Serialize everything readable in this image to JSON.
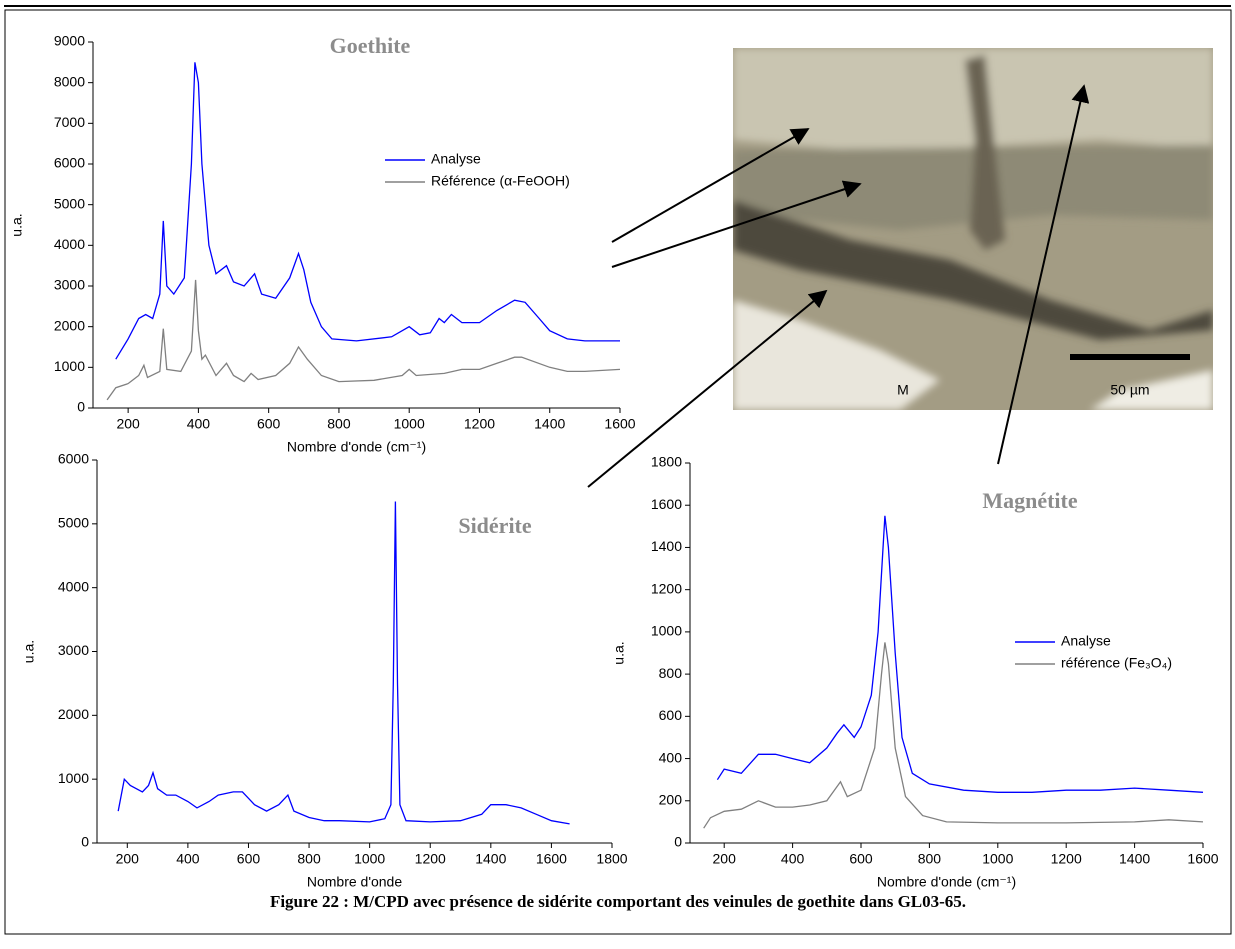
{
  "figure": {
    "caption": "Figure 22 : M/CPD avec présence de sidérite comportant des veinules de goethite dans GL03-65.",
    "micrograph": {
      "label": "M",
      "scale_bar": "50 µm"
    }
  },
  "chart_data": [
    {
      "type": "line",
      "title": "Goethite",
      "xlabel": "Nombre d'onde (cm⁻¹)",
      "ylabel": "u.a.",
      "xlim": [
        100,
        1600
      ],
      "xticks": [
        200,
        400,
        600,
        800,
        1000,
        1200,
        1400,
        1600
      ],
      "ylim": [
        0,
        9000
      ],
      "yticks": [
        0,
        1000,
        2000,
        3000,
        4000,
        5000,
        6000,
        7000,
        8000,
        9000
      ],
      "series": [
        {
          "name": "Analyse",
          "color": "#0000ff",
          "x": [
            165,
            200,
            230,
            250,
            270,
            290,
            300,
            310,
            330,
            360,
            380,
            390,
            400,
            410,
            430,
            450,
            480,
            500,
            530,
            560,
            580,
            620,
            660,
            685,
            700,
            720,
            750,
            780,
            850,
            950,
            1000,
            1030,
            1060,
            1085,
            1100,
            1120,
            1150,
            1200,
            1250,
            1300,
            1330,
            1370,
            1400,
            1450,
            1500,
            1600
          ],
          "values": [
            1200,
            1700,
            2200,
            2300,
            2200,
            2800,
            4600,
            3000,
            2800,
            3200,
            6000,
            8500,
            8000,
            6000,
            4000,
            3300,
            3500,
            3100,
            3000,
            3300,
            2800,
            2700,
            3200,
            3800,
            3400,
            2600,
            2000,
            1700,
            1650,
            1750,
            2000,
            1800,
            1850,
            2200,
            2100,
            2300,
            2100,
            2100,
            2400,
            2650,
            2600,
            2200,
            1900,
            1700,
            1650,
            1650
          ]
        },
        {
          "name": "Référence (α-FeOOH)",
          "color": "#808080",
          "x": [
            140,
            165,
            200,
            230,
            245,
            255,
            290,
            300,
            310,
            350,
            380,
            392,
            400,
            410,
            420,
            450,
            480,
            500,
            530,
            550,
            570,
            620,
            660,
            685,
            710,
            750,
            800,
            900,
            980,
            1000,
            1020,
            1100,
            1150,
            1200,
            1250,
            1300,
            1320,
            1400,
            1450,
            1500,
            1600
          ],
          "values": [
            200,
            500,
            600,
            800,
            1050,
            750,
            900,
            1950,
            950,
            900,
            1400,
            3150,
            1900,
            1200,
            1300,
            800,
            1100,
            800,
            650,
            850,
            700,
            800,
            1100,
            1500,
            1200,
            800,
            650,
            680,
            800,
            950,
            800,
            850,
            950,
            950,
            1100,
            1250,
            1250,
            1000,
            900,
            900,
            950
          ]
        }
      ]
    },
    {
      "type": "line",
      "title": "Sidérite",
      "xlabel": "Nombre d'onde",
      "ylabel": "u.a.",
      "xlim": [
        100,
        1800
      ],
      "xticks": [
        200,
        400,
        600,
        800,
        1000,
        1200,
        1400,
        1600,
        1800
      ],
      "ylim": [
        0,
        6000
      ],
      "yticks": [
        0,
        1000,
        2000,
        3000,
        4000,
        5000,
        6000
      ],
      "series": [
        {
          "color": "#0000ff",
          "x": [
            170,
            190,
            210,
            250,
            270,
            285,
            300,
            330,
            360,
            400,
            430,
            470,
            500,
            550,
            580,
            600,
            620,
            660,
            700,
            730,
            750,
            800,
            850,
            900,
            1000,
            1050,
            1070,
            1078,
            1085,
            1092,
            1100,
            1120,
            1200,
            1300,
            1370,
            1400,
            1450,
            1500,
            1550,
            1600,
            1660
          ],
          "values": [
            500,
            1000,
            900,
            800,
            900,
            1100,
            850,
            750,
            750,
            650,
            550,
            650,
            750,
            800,
            800,
            700,
            600,
            500,
            600,
            750,
            500,
            400,
            350,
            350,
            330,
            380,
            600,
            2500,
            5350,
            2500,
            600,
            350,
            330,
            350,
            450,
            600,
            600,
            550,
            450,
            350,
            300
          ]
        }
      ]
    },
    {
      "type": "line",
      "title": "Magnétite",
      "xlabel": "Nombre d'onde (cm⁻¹)",
      "ylabel": "u.a.",
      "xlim": [
        100,
        1600
      ],
      "xticks": [
        200,
        400,
        600,
        800,
        1000,
        1200,
        1400,
        1600
      ],
      "ylim": [
        0,
        1800
      ],
      "yticks": [
        0,
        200,
        400,
        600,
        800,
        1000,
        1200,
        1400,
        1600,
        1800
      ],
      "series": [
        {
          "name": "Analyse",
          "color": "#0000ff",
          "x": [
            180,
            200,
            250,
            300,
            350,
            400,
            450,
            500,
            530,
            550,
            580,
            600,
            630,
            650,
            670,
            680,
            700,
            720,
            750,
            800,
            900,
            1000,
            1100,
            1200,
            1300,
            1400,
            1500,
            1600
          ],
          "values": [
            300,
            350,
            330,
            420,
            420,
            400,
            380,
            450,
            520,
            560,
            500,
            550,
            700,
            1000,
            1550,
            1400,
            900,
            500,
            330,
            280,
            250,
            240,
            240,
            250,
            250,
            260,
            250,
            240
          ]
        },
        {
          "name": "référence (Fe₃O₄)",
          "color": "#808080",
          "x": [
            140,
            160,
            200,
            250,
            300,
            350,
            400,
            450,
            500,
            540,
            560,
            600,
            640,
            660,
            670,
            680,
            700,
            730,
            780,
            850,
            1000,
            1200,
            1400,
            1500,
            1600
          ],
          "values": [
            70,
            120,
            150,
            160,
            200,
            170,
            170,
            180,
            200,
            290,
            220,
            250,
            450,
            800,
            950,
            850,
            450,
            220,
            130,
            100,
            95,
            95,
            100,
            110,
            100
          ]
        }
      ]
    }
  ]
}
